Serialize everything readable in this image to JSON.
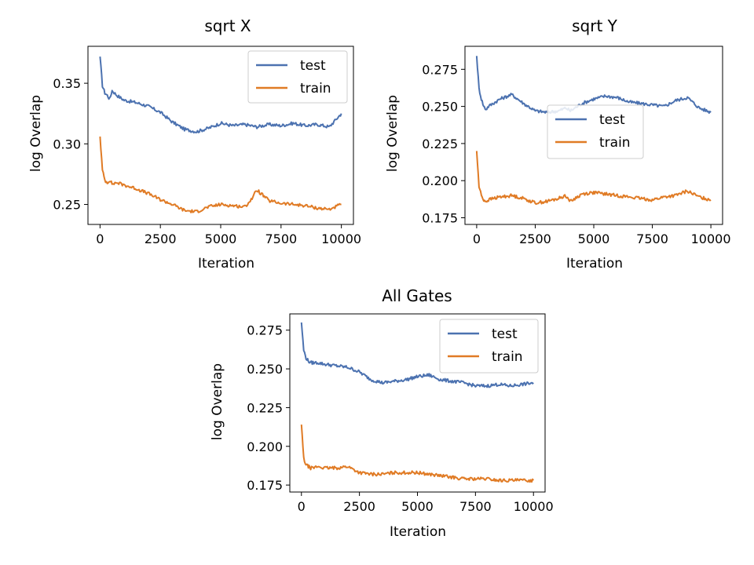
{
  "colors": {
    "test": "#4c72b0",
    "train": "#e07b25"
  },
  "chart_data": [
    {
      "type": "line",
      "title": "sqrt X",
      "xlabel": "Iteration",
      "ylabel": "log Overlap",
      "xlim": [
        -500,
        10500
      ],
      "ylim": [
        0.2335,
        0.3805
      ],
      "xticks": [
        0,
        2500,
        5000,
        7500,
        10000
      ],
      "xtick_labels": [
        "0",
        "2500",
        "5000",
        "7500",
        "10000"
      ],
      "yticks": [
        0.25,
        0.3,
        0.35
      ],
      "ytick_labels": [
        "0.25",
        "0.30",
        "0.35"
      ],
      "legend": "top-right",
      "series": [
        {
          "name": "test",
          "color": "#4c72b0",
          "x": [
            0,
            100,
            200,
            300,
            400,
            500,
            700,
            1000,
            1500,
            2000,
            2500,
            3000,
            3500,
            4000,
            4500,
            5000,
            5500,
            6000,
            6500,
            7000,
            7500,
            8000,
            8500,
            9000,
            9500,
            10000
          ],
          "y": [
            0.372,
            0.348,
            0.342,
            0.34,
            0.337,
            0.344,
            0.34,
            0.336,
            0.334,
            0.331,
            0.326,
            0.318,
            0.312,
            0.31,
            0.313,
            0.317,
            0.315,
            0.316,
            0.314,
            0.316,
            0.315,
            0.317,
            0.315,
            0.316,
            0.314,
            0.325
          ]
        },
        {
          "name": "train",
          "color": "#e07b25",
          "x": [
            0,
            100,
            200,
            300,
            400,
            500,
            700,
            1000,
            1500,
            2000,
            2500,
            3000,
            3500,
            4000,
            4500,
            5000,
            5500,
            6000,
            6300,
            6500,
            7000,
            7500,
            8000,
            8500,
            9000,
            9500,
            10000
          ],
          "y": [
            0.306,
            0.278,
            0.27,
            0.268,
            0.27,
            0.267,
            0.268,
            0.266,
            0.263,
            0.259,
            0.254,
            0.25,
            0.245,
            0.244,
            0.248,
            0.25,
            0.249,
            0.248,
            0.255,
            0.262,
            0.253,
            0.251,
            0.25,
            0.249,
            0.247,
            0.246,
            0.25
          ]
        }
      ]
    },
    {
      "type": "line",
      "title": "sqrt Y",
      "xlabel": "Iteration",
      "ylabel": "log Overlap",
      "xlim": [
        -500,
        10500
      ],
      "ylim": [
        0.1705,
        0.2905
      ],
      "xticks": [
        0,
        2500,
        5000,
        7500,
        10000
      ],
      "xtick_labels": [
        "0",
        "2500",
        "5000",
        "7500",
        "10000"
      ],
      "yticks": [
        0.175,
        0.2,
        0.225,
        0.25,
        0.275
      ],
      "ytick_labels": [
        "0.175",
        "0.200",
        "0.225",
        "0.250",
        "0.275"
      ],
      "legend": "center-right",
      "series": [
        {
          "name": "test",
          "color": "#4c72b0",
          "x": [
            0,
            100,
            200,
            300,
            400,
            500,
            700,
            1000,
            1500,
            2000,
            2500,
            3000,
            3500,
            3800,
            4000,
            4500,
            5000,
            5500,
            6000,
            6500,
            7000,
            7500,
            8000,
            8500,
            9000,
            9500,
            10000
          ],
          "y": [
            0.284,
            0.262,
            0.255,
            0.25,
            0.248,
            0.25,
            0.252,
            0.255,
            0.258,
            0.252,
            0.247,
            0.246,
            0.247,
            0.249,
            0.247,
            0.252,
            0.255,
            0.257,
            0.256,
            0.253,
            0.252,
            0.251,
            0.25,
            0.254,
            0.256,
            0.249,
            0.246
          ]
        },
        {
          "name": "train",
          "color": "#e07b25",
          "x": [
            0,
            100,
            200,
            300,
            400,
            500,
            700,
            1000,
            1500,
            2000,
            2500,
            3000,
            3500,
            3800,
            4000,
            4500,
            5000,
            5500,
            6000,
            6500,
            7000,
            7500,
            8000,
            8500,
            9000,
            9500,
            10000
          ],
          "y": [
            0.22,
            0.196,
            0.19,
            0.187,
            0.186,
            0.187,
            0.188,
            0.189,
            0.19,
            0.188,
            0.185,
            0.186,
            0.188,
            0.19,
            0.186,
            0.191,
            0.192,
            0.191,
            0.19,
            0.189,
            0.188,
            0.187,
            0.189,
            0.19,
            0.193,
            0.189,
            0.187
          ]
        }
      ]
    },
    {
      "type": "line",
      "title": "All Gates",
      "xlabel": "Iteration",
      "ylabel": "log Overlap",
      "xlim": [
        -500,
        10500
      ],
      "ylim": [
        0.1705,
        0.2855
      ],
      "xticks": [
        0,
        2500,
        5000,
        7500,
        10000
      ],
      "xtick_labels": [
        "0",
        "2500",
        "5000",
        "7500",
        "10000"
      ],
      "yticks": [
        0.175,
        0.2,
        0.225,
        0.25,
        0.275
      ],
      "ytick_labels": [
        "0.175",
        "0.200",
        "0.225",
        "0.250",
        "0.275"
      ],
      "legend": "top-right",
      "series": [
        {
          "name": "test",
          "color": "#4c72b0",
          "x": [
            0,
            100,
            200,
            300,
            400,
            500,
            700,
            1000,
            1500,
            2000,
            2500,
            3000,
            3500,
            4000,
            4500,
            5000,
            5500,
            6000,
            6500,
            7000,
            7500,
            8000,
            8500,
            9000,
            9500,
            10000
          ],
          "y": [
            0.28,
            0.262,
            0.257,
            0.255,
            0.254,
            0.254,
            0.254,
            0.253,
            0.252,
            0.251,
            0.248,
            0.243,
            0.241,
            0.242,
            0.243,
            0.245,
            0.246,
            0.243,
            0.242,
            0.241,
            0.239,
            0.239,
            0.24,
            0.239,
            0.24,
            0.241
          ]
        },
        {
          "name": "train",
          "color": "#e07b25",
          "x": [
            0,
            100,
            200,
            300,
            400,
            500,
            700,
            1000,
            1500,
            2000,
            2500,
            3000,
            3500,
            4000,
            4500,
            5000,
            5500,
            6000,
            6500,
            7000,
            7500,
            8000,
            8500,
            9000,
            9500,
            10000
          ],
          "y": [
            0.214,
            0.192,
            0.188,
            0.187,
            0.186,
            0.186,
            0.187,
            0.186,
            0.186,
            0.187,
            0.183,
            0.182,
            0.182,
            0.183,
            0.183,
            0.183,
            0.182,
            0.181,
            0.18,
            0.179,
            0.179,
            0.179,
            0.178,
            0.178,
            0.178,
            0.178
          ]
        }
      ]
    }
  ]
}
